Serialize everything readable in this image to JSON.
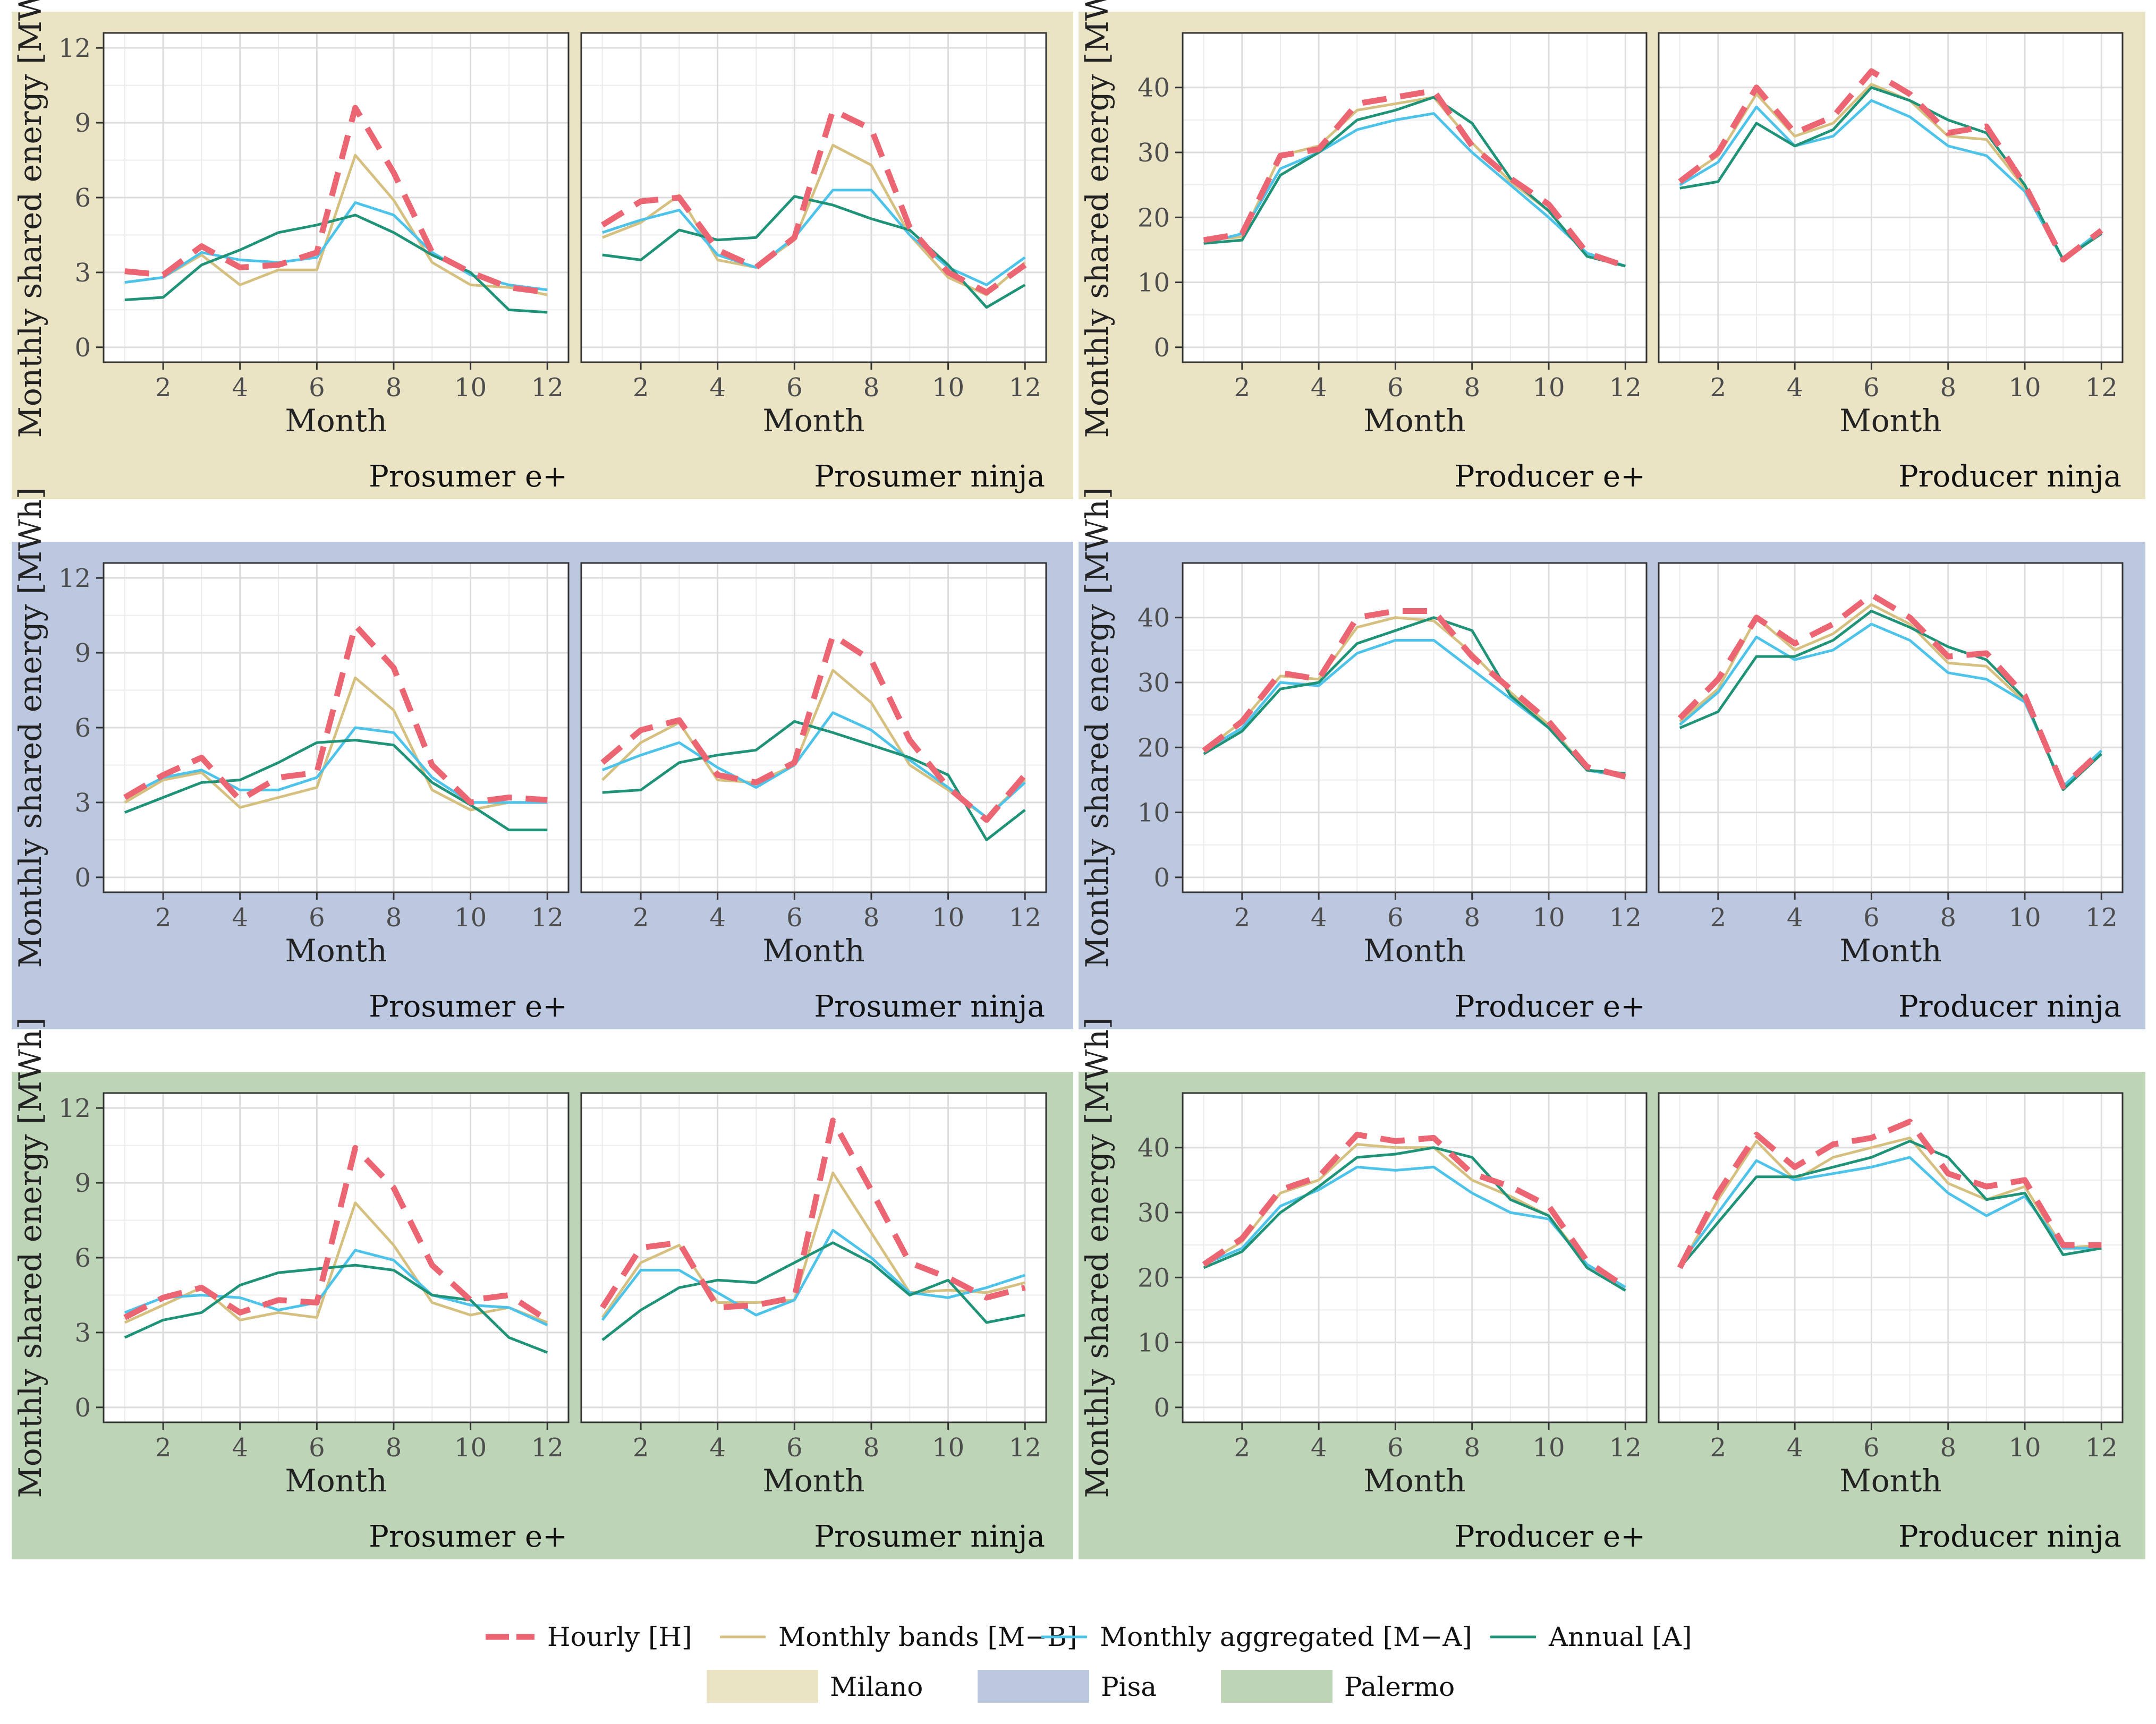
{
  "chart_data": {
    "type": "line",
    "x_title": "Month",
    "y_title": "Monthly shared energy [MWh]",
    "x": [
      1,
      2,
      3,
      4,
      5,
      6,
      7,
      8,
      9,
      10,
      11,
      12
    ],
    "x_ticks": [
      2,
      4,
      6,
      8,
      10,
      12
    ],
    "series_legend": [
      {
        "key": "H",
        "name": "Hourly [H]",
        "color": "#EB6573",
        "dashed": true
      },
      {
        "key": "MB",
        "name": "Monthly bands [M−B]",
        "color": "#D6C07F",
        "dashed": false
      },
      {
        "key": "MA",
        "name": "Monthly aggregated [M−A]",
        "color": "#4DC3EA",
        "dashed": false
      },
      {
        "key": "A",
        "name": "Annual [A]",
        "color": "#1F9378",
        "dashed": false
      }
    ],
    "cities": [
      {
        "name": "Milano",
        "color": "#EAE4C5",
        "prosumer_ylim": [
          -0.6,
          12.6
        ],
        "prosumer_yticks": [
          0,
          3,
          6,
          9,
          12
        ],
        "producer_ylim": [
          -2.3,
          48.4
        ],
        "producer_yticks": [
          0,
          10,
          20,
          30,
          40
        ],
        "panels": [
          {
            "strip": "Prosumer e+",
            "series": {
              "H": [
                3.05,
                2.9,
                4.05,
                3.2,
                3.3,
                3.8,
                9.6,
                7.0,
                3.8,
                3.0,
                2.4,
                2.2
              ],
              "MB": [
                2.6,
                2.8,
                3.7,
                2.5,
                3.1,
                3.1,
                7.7,
                5.9,
                3.4,
                2.5,
                2.4,
                2.1
              ],
              "MA": [
                2.6,
                2.8,
                3.8,
                3.5,
                3.4,
                3.6,
                5.8,
                5.3,
                3.8,
                2.9,
                2.5,
                2.3
              ],
              "A": [
                1.9,
                2.0,
                3.3,
                3.9,
                4.6,
                4.9,
                5.3,
                4.6,
                3.7,
                3.0,
                1.5,
                1.4
              ]
            }
          },
          {
            "strip": "Prosumer ninja",
            "series": {
              "H": [
                4.9,
                5.85,
                6.0,
                3.9,
                3.2,
                4.4,
                9.5,
                8.75,
                4.8,
                3.0,
                2.2,
                3.3
              ],
              "MB": [
                4.4,
                5.0,
                6.1,
                3.5,
                3.2,
                4.3,
                8.1,
                7.3,
                4.5,
                2.8,
                2.1,
                3.4
              ],
              "MA": [
                4.6,
                5.1,
                5.5,
                3.7,
                3.2,
                4.4,
                6.3,
                6.3,
                4.5,
                3.2,
                2.5,
                3.6
              ],
              "A": [
                3.7,
                3.5,
                4.7,
                4.3,
                4.4,
                6.05,
                5.7,
                5.15,
                4.7,
                3.3,
                1.6,
                2.5
              ]
            }
          },
          {
            "strip": "Producer e+",
            "series": {
              "H": [
                16.5,
                17.5,
                29.5,
                30.5,
                37.5,
                38.5,
                39.5,
                31.0,
                26.0,
                22.0,
                14.5,
                12.5
              ],
              "MB": [
                16.5,
                17.0,
                29.5,
                31.0,
                36.5,
                37.5,
                38.5,
                31.5,
                25.5,
                21.0,
                14.0,
                12.5
              ],
              "MA": [
                16.0,
                17.5,
                27.5,
                30.0,
                33.5,
                35.0,
                36.0,
                30.0,
                25.0,
                20.0,
                14.5,
                12.5
              ],
              "A": [
                16.0,
                16.5,
                26.5,
                30.0,
                35.0,
                36.5,
                38.5,
                34.5,
                26.0,
                21.0,
                14.0,
                12.5
              ]
            }
          },
          {
            "strip": "Producer ninja",
            "series": {
              "H": [
                25.5,
                30.0,
                40.0,
                33.0,
                35.5,
                42.5,
                39.0,
                33.0,
                34.0,
                25.0,
                13.5,
                18.0
              ],
              "MB": [
                25.5,
                29.5,
                39.0,
                32.5,
                34.5,
                40.5,
                38.0,
                32.5,
                32.0,
                24.5,
                13.5,
                18.0
              ],
              "MA": [
                25.0,
                28.5,
                37.0,
                31.0,
                32.5,
                38.0,
                35.5,
                31.0,
                29.5,
                24.0,
                13.5,
                18.0
              ],
              "A": [
                24.5,
                25.5,
                34.5,
                31.0,
                33.5,
                40.0,
                38.0,
                35.0,
                33.0,
                25.0,
                13.5,
                17.5
              ]
            }
          }
        ]
      },
      {
        "name": "Pisa",
        "color": "#BCC8DF",
        "prosumer_ylim": [
          -0.6,
          12.6
        ],
        "prosumer_yticks": [
          0,
          3,
          6,
          9,
          12
        ],
        "producer_ylim": [
          -2.3,
          48.4
        ],
        "producer_yticks": [
          0,
          10,
          20,
          30,
          40
        ],
        "panels": [
          {
            "strip": "Prosumer e+",
            "series": {
              "H": [
                3.2,
                4.1,
                4.8,
                3.1,
                4.0,
                4.2,
                10.1,
                8.4,
                4.5,
                3.0,
                3.2,
                3.1
              ],
              "MB": [
                3.0,
                3.9,
                4.2,
                2.8,
                3.2,
                3.6,
                8.0,
                6.7,
                3.5,
                2.7,
                3.0,
                3.0
              ],
              "MA": [
                3.2,
                4.0,
                4.3,
                3.5,
                3.5,
                4.0,
                6.0,
                5.8,
                4.0,
                3.0,
                3.0,
                3.0
              ],
              "A": [
                2.6,
                3.2,
                3.8,
                3.9,
                4.6,
                5.4,
                5.5,
                5.3,
                3.8,
                2.9,
                1.9,
                1.9
              ]
            }
          },
          {
            "strip": "Prosumer ninja",
            "series": {
              "H": [
                4.6,
                5.9,
                6.3,
                4.1,
                3.8,
                4.6,
                9.7,
                8.7,
                5.5,
                3.6,
                2.3,
                4.1
              ],
              "MB": [
                3.9,
                5.4,
                6.2,
                3.9,
                3.8,
                4.5,
                8.3,
                7.0,
                4.5,
                3.5,
                2.4,
                3.9
              ],
              "MA": [
                4.3,
                4.9,
                5.4,
                4.4,
                3.6,
                4.5,
                6.6,
                5.9,
                4.7,
                3.6,
                2.4,
                3.8
              ],
              "A": [
                3.4,
                3.5,
                4.6,
                4.9,
                5.1,
                6.25,
                5.8,
                5.3,
                4.8,
                4.1,
                1.5,
                2.7
              ]
            }
          },
          {
            "strip": "Producer e+",
            "series": {
              "H": [
                19.5,
                24.0,
                31.5,
                30.5,
                40.0,
                41.0,
                41.0,
                34.0,
                29.0,
                24.0,
                17.0,
                15.5
              ],
              "MB": [
                19.5,
                24.0,
                31.0,
                30.5,
                38.5,
                40.0,
                39.5,
                34.5,
                28.5,
                23.5,
                16.5,
                15.5
              ],
              "MA": [
                19.5,
                23.0,
                30.0,
                29.5,
                34.5,
                36.5,
                36.5,
                32.0,
                27.5,
                23.0,
                16.5,
                15.5
              ],
              "A": [
                19.0,
                22.5,
                29.0,
                30.0,
                36.0,
                38.0,
                40.0,
                38.0,
                28.0,
                23.0,
                16.5,
                16.0
              ]
            }
          },
          {
            "strip": "Producer ninja",
            "series": {
              "H": [
                24.5,
                30.5,
                40.0,
                36.0,
                39.0,
                43.5,
                40.0,
                34.0,
                34.5,
                28.0,
                14.0,
                19.5
              ],
              "MB": [
                24.0,
                29.0,
                40.0,
                35.0,
                37.5,
                42.0,
                39.0,
                33.0,
                32.5,
                27.0,
                14.0,
                19.5
              ],
              "MA": [
                23.5,
                28.5,
                37.0,
                33.5,
                35.0,
                39.0,
                36.5,
                31.5,
                30.5,
                27.0,
                14.0,
                19.5
              ],
              "A": [
                23.0,
                25.5,
                34.0,
                34.0,
                36.5,
                41.0,
                38.5,
                35.5,
                33.5,
                27.5,
                13.5,
                19.0
              ]
            }
          }
        ]
      },
      {
        "name": "Palermo",
        "color": "#BDD4B6",
        "prosumer_ylim": [
          -0.6,
          12.6
        ],
        "prosumer_yticks": [
          0,
          3,
          6,
          9,
          12
        ],
        "producer_ylim": [
          -2.3,
          48.4
        ],
        "producer_yticks": [
          0,
          10,
          20,
          30,
          40
        ],
        "panels": [
          {
            "strip": "Prosumer e+",
            "series": {
              "H": [
                3.6,
                4.4,
                4.8,
                3.8,
                4.3,
                4.2,
                10.4,
                8.8,
                5.7,
                4.3,
                4.5,
                3.5
              ],
              "MB": [
                3.4,
                4.1,
                4.8,
                3.5,
                3.8,
                3.6,
                8.2,
                6.5,
                4.2,
                3.7,
                4.0,
                3.4
              ],
              "MA": [
                3.8,
                4.4,
                4.5,
                4.4,
                3.9,
                4.2,
                6.3,
                5.9,
                4.5,
                4.1,
                4.0,
                3.3
              ],
              "A": [
                2.8,
                3.5,
                3.8,
                4.9,
                5.4,
                5.55,
                5.7,
                5.5,
                4.5,
                4.3,
                2.8,
                2.2
              ]
            }
          },
          {
            "strip": "Prosumer ninja",
            "series": {
              "H": [
                4.0,
                6.4,
                6.6,
                4.0,
                4.1,
                4.4,
                11.5,
                8.7,
                5.8,
                5.2,
                4.4,
                4.8
              ],
              "MB": [
                3.6,
                5.8,
                6.5,
                4.2,
                4.2,
                4.3,
                9.4,
                7.0,
                4.6,
                4.7,
                4.6,
                5.0
              ],
              "MA": [
                3.5,
                5.5,
                5.5,
                4.6,
                3.7,
                4.3,
                7.1,
                6.0,
                4.6,
                4.4,
                4.8,
                5.3
              ],
              "A": [
                2.7,
                3.9,
                4.8,
                5.1,
                5.0,
                5.8,
                6.6,
                5.8,
                4.5,
                5.1,
                3.4,
                3.7
              ]
            }
          },
          {
            "strip": "Producer e+",
            "series": {
              "H": [
                22.0,
                26.0,
                33.5,
                35.5,
                42.0,
                41.0,
                41.5,
                36.0,
                34.0,
                31.0,
                22.5,
                18.5
              ],
              "MB": [
                22.0,
                25.5,
                33.0,
                35.0,
                40.5,
                40.0,
                40.0,
                35.0,
                32.5,
                29.5,
                22.0,
                18.5
              ],
              "MA": [
                22.0,
                24.5,
                31.0,
                33.5,
                37.0,
                36.5,
                37.0,
                33.0,
                30.0,
                29.0,
                22.0,
                18.5
              ],
              "A": [
                21.5,
                24.0,
                30.0,
                34.0,
                38.5,
                39.0,
                40.0,
                38.5,
                32.0,
                29.5,
                21.5,
                18.0
              ]
            }
          },
          {
            "strip": "Producer ninja",
            "series": {
              "H": [
                21.5,
                33.0,
                42.0,
                37.0,
                40.5,
                41.5,
                44.0,
                36.0,
                34.0,
                35.0,
                25.0,
                25.0
              ],
              "MB": [
                21.5,
                32.0,
                41.0,
                35.0,
                38.5,
                40.0,
                41.5,
                34.5,
                32.0,
                34.0,
                24.5,
                25.0
              ],
              "MA": [
                22.0,
                30.0,
                38.0,
                35.0,
                36.0,
                37.0,
                38.5,
                33.0,
                29.5,
                32.5,
                24.5,
                24.5
              ],
              "A": [
                21.5,
                28.5,
                35.5,
                35.5,
                37.0,
                38.5,
                41.0,
                38.5,
                32.0,
                33.0,
                23.5,
                24.5
              ]
            }
          }
        ]
      }
    ]
  }
}
